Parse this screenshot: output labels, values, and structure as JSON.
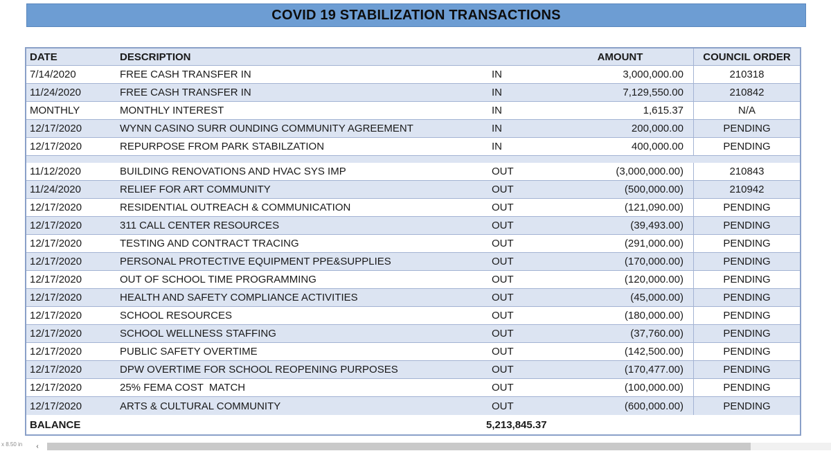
{
  "title": "COVID 19 STABILIZATION TRANSACTIONS",
  "colors": {
    "title_fill": "#6d9dd3",
    "title_border": "#5a87bd",
    "row_alt_fill": "#dce4f2",
    "grid_border": "#a3b3d3",
    "text": "#1a1a1a"
  },
  "table": {
    "headers": {
      "date": "DATE",
      "description": "DESCRIPTION",
      "amount": "AMOUNT",
      "council_order": "COUNCIL ORDER"
    },
    "rows": [
      {
        "date": "7/14/2020",
        "description": "FREE CASH TRANSFER IN",
        "direction": "IN",
        "amount": "3,000,000.00",
        "council_order": "210318"
      },
      {
        "date": "11/24/2020",
        "description": "FREE CASH TRANSFER IN",
        "direction": "IN",
        "amount": "7,129,550.00",
        "council_order": "210842"
      },
      {
        "date": "MONTHLY",
        "description": "MONTHLY INTEREST",
        "direction": "IN",
        "amount": "1,615.37",
        "council_order": "N/A"
      },
      {
        "date": "12/17/2020",
        "description": "WYNN CASINO SURR OUNDING COMMUNITY AGREEMENT",
        "direction": "IN",
        "amount": "200,000.00",
        "council_order": "PENDING"
      },
      {
        "date": "12/17/2020",
        "description": "REPURPOSE FROM PARK STABILZATION",
        "direction": "IN",
        "amount": "400,000.00",
        "council_order": "PENDING"
      },
      {
        "date": "11/12/2020",
        "description": "BUILDING RENOVATIONS AND HVAC SYS IMP",
        "direction": "OUT",
        "amount": "(3,000,000.00)",
        "council_order": "210843"
      },
      {
        "date": "11/24/2020",
        "description": "RELIEF FOR ART COMMUNITY",
        "direction": "OUT",
        "amount": "(500,000.00)",
        "council_order": "210942"
      },
      {
        "date": "12/17/2020",
        "description": "RESIDENTIAL OUTREACH & COMMUNICATION",
        "direction": "OUT",
        "amount": "(121,090.00)",
        "council_order": "PENDING"
      },
      {
        "date": "12/17/2020",
        "description": "311 CALL CENTER RESOURCES",
        "direction": "OUT",
        "amount": "(39,493.00)",
        "council_order": "PENDING"
      },
      {
        "date": "12/17/2020",
        "description": "TESTING AND CONTRACT TRACING",
        "direction": "OUT",
        "amount": "(291,000.00)",
        "council_order": "PENDING"
      },
      {
        "date": "12/17/2020",
        "description": "PERSONAL PROTECTIVE EQUIPMENT PPE&SUPPLIES",
        "direction": "OUT",
        "amount": "(170,000.00)",
        "council_order": "PENDING"
      },
      {
        "date": "12/17/2020",
        "description": "OUT OF SCHOOL TIME PROGRAMMING",
        "direction": "OUT",
        "amount": "(120,000.00)",
        "council_order": "PENDING"
      },
      {
        "date": "12/17/2020",
        "description": "HEALTH AND SAFETY COMPLIANCE ACTIVITIES",
        "direction": "OUT",
        "amount": "(45,000.00)",
        "council_order": "PENDING"
      },
      {
        "date": "12/17/2020",
        "description": "SCHOOL RESOURCES",
        "direction": "OUT",
        "amount": "(180,000.00)",
        "council_order": "PENDING"
      },
      {
        "date": "12/17/2020",
        "description": "SCHOOL WELLNESS STAFFING",
        "direction": "OUT",
        "amount": "(37,760.00)",
        "council_order": "PENDING"
      },
      {
        "date": "12/17/2020",
        "description": "PUBLIC SAFETY OVERTIME",
        "direction": "OUT",
        "amount": "(142,500.00)",
        "council_order": "PENDING"
      },
      {
        "date": "12/17/2020",
        "description": "DPW OVERTIME FOR SCHOOL REOPENING PURPOSES",
        "direction": "OUT",
        "amount": "(170,477.00)",
        "council_order": "PENDING"
      },
      {
        "date": "12/17/2020",
        "description": "25% FEMA COST  MATCH",
        "direction": "OUT",
        "amount": "(100,000.00)",
        "council_order": "PENDING"
      },
      {
        "date": "12/17/2020",
        "description": "ARTS & CULTURAL COMMUNITY",
        "direction": "OUT",
        "amount": "(600,000.00)",
        "council_order": "PENDING"
      }
    ],
    "balance": {
      "label": "BALANCE",
      "value": "5,213,845.37"
    }
  },
  "statusbar": {
    "page_size_text": "x 8.50 in",
    "scroll_left_arrow": "‹"
  }
}
